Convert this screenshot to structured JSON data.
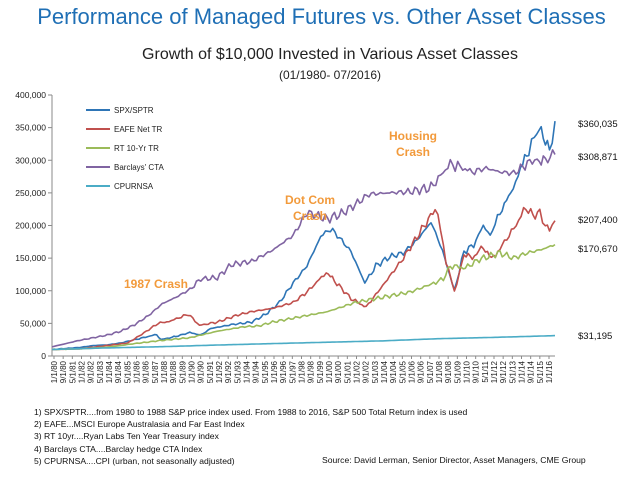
{
  "title": "Performance of Managed Futures vs. Other Asset Classes",
  "subtitle": "Growth of $10,000 Invested in Various Asset Classes",
  "period": "(01/1980- 07/2016)",
  "colors": {
    "title": "#1F6FB5",
    "annotation": "#F29A3B",
    "spx": "#2E75B6",
    "eafe": "#C0504D",
    "rt": "#9BBB59",
    "cta": "#8064A2",
    "cpi": "#4BACC6"
  },
  "chart_data": {
    "type": "line",
    "title": "Growth of $10,000 Invested in Various Asset Classes",
    "xlabel": "",
    "ylabel": "",
    "ylim": [
      0,
      400000
    ],
    "yticks": [
      0,
      50000,
      100000,
      150000,
      200000,
      250000,
      300000,
      350000,
      400000
    ],
    "ytick_labels": [
      "0",
      "50,000",
      "100,000",
      "150,000",
      "200,000",
      "250,000",
      "300,000",
      "350,000",
      "400,000"
    ],
    "xlim": [
      1980.0,
      2016.5
    ],
    "xtick_labels": [
      "1/1/80",
      "9/1/80",
      "5/1/81",
      "1/1/82",
      "9/1/82",
      "5/1/83",
      "1/1/84",
      "9/1/84",
      "5/1/85",
      "1/1/86",
      "9/1/86",
      "5/1/87",
      "1/1/88",
      "9/1/88",
      "5/1/89",
      "1/1/90",
      "9/1/90",
      "5/1/91",
      "1/1/92",
      "9/1/92",
      "5/1/93",
      "1/1/94",
      "9/1/94",
      "5/1/95",
      "1/1/96",
      "9/1/96",
      "5/1/97",
      "1/1/98",
      "9/1/98",
      "5/1/99",
      "1/1/00",
      "9/1/00",
      "5/1/01",
      "1/1/02",
      "9/1/02",
      "5/1/03",
      "1/1/04",
      "9/1/04",
      "5/1/05",
      "1/1/06",
      "9/1/06",
      "5/1/07",
      "1/1/08",
      "9/1/08",
      "5/1/09",
      "1/1/10",
      "9/1/10",
      "5/1/11",
      "1/1/12",
      "9/1/12",
      "5/1/13",
      "1/1/14",
      "9/1/14",
      "5/1/15",
      "1/1/16"
    ],
    "grid": false,
    "legend_position": "top-left",
    "series": [
      {
        "name": "SPX/SPTR",
        "color": "#2E75B6",
        "x": [
          1980.0,
          1981.0,
          1982.0,
          1983.0,
          1984.0,
          1985.0,
          1986.0,
          1987.6,
          1987.9,
          1989.0,
          1990.0,
          1990.8,
          1991.5,
          1993.0,
          1994.5,
          1995.5,
          1996.5,
          1997.5,
          1998.5,
          1999.5,
          2000.2,
          2000.7,
          2001.7,
          2002.7,
          2003.5,
          2004.5,
          2005.5,
          2006.5,
          2007.5,
          2008.0,
          2008.5,
          2009.2,
          2009.9,
          2010.6,
          2011.3,
          2011.8,
          2012.5,
          2013.3,
          2014.0,
          2014.6,
          2015.0,
          2015.5,
          2015.8,
          2016.1,
          2016.5
        ],
        "y": [
          10000,
          11500,
          13000,
          16000,
          17000,
          20000,
          25000,
          33000,
          25000,
          30000,
          36000,
          32000,
          42000,
          48000,
          52000,
          64000,
          82000,
          112000,
          138000,
          183000,
          195000,
          185000,
          160000,
          112000,
          138000,
          152000,
          158000,
          178000,
          205000,
          180000,
          150000,
          100000,
          160000,
          170000,
          200000,
          185000,
          220000,
          250000,
          285000,
          315000,
          335000,
          350000,
          330000,
          315000,
          360035
        ]
      },
      {
        "name": "EAFE Net TR",
        "color": "#C0504D",
        "x": [
          1980.0,
          1982.0,
          1984.0,
          1985.5,
          1986.5,
          1987.7,
          1988.5,
          1989.9,
          1990.7,
          1992.0,
          1993.5,
          1994.5,
          1996.0,
          1997.5,
          1998.5,
          1999.9,
          2000.5,
          2001.7,
          2002.8,
          2004.0,
          2005.5,
          2006.5,
          2007.8,
          2008.2,
          2008.6,
          2009.2,
          2009.9,
          2010.5,
          2011.3,
          2011.9,
          2012.5,
          2013.5,
          2014.4,
          2014.9,
          2015.4,
          2015.8,
          2016.1,
          2016.5
        ],
        "y": [
          10000,
          11000,
          16000,
          20000,
          33000,
          50000,
          53000,
          64000,
          47000,
          52000,
          63000,
          68000,
          73000,
          82000,
          98000,
          128000,
          115000,
          88000,
          75000,
          108000,
          150000,
          183000,
          225000,
          195000,
          145000,
          98000,
          155000,
          150000,
          168000,
          148000,
          165000,
          195000,
          228000,
          215000,
          220000,
          200000,
          195000,
          207400
        ]
      },
      {
        "name": "RT 10-Yr TR",
        "color": "#9BBB59",
        "x": [
          1980.0,
          1982.0,
          1984.0,
          1986.0,
          1988.0,
          1990.0,
          1992.0,
          1994.0,
          1995.0,
          1996.0,
          1998.0,
          2000.0,
          2002.0,
          2004.0,
          2006.0,
          2007.5,
          2008.4,
          2008.9,
          2010.0,
          2011.0,
          2012.5,
          2013.5,
          2014.5,
          2015.5,
          2016.5
        ],
        "y": [
          10000,
          11000,
          13500,
          19000,
          24000,
          28000,
          38000,
          45000,
          46000,
          52000,
          60000,
          68000,
          82000,
          90000,
          98000,
          110000,
          118000,
          138000,
          135000,
          148000,
          158000,
          150000,
          158000,
          163000,
          170670
        ]
      },
      {
        "name": "Barclays' CTA",
        "color": "#8064A2",
        "x": [
          1980.0,
          1981.0,
          1982.0,
          1983.0,
          1984.0,
          1985.0,
          1986.0,
          1987.0,
          1988.0,
          1989.0,
          1990.0,
          1990.8,
          1992.0,
          1993.0,
          1994.5,
          1996.0,
          1997.5,
          1998.5,
          2000.0,
          2001.0,
          2002.0,
          2003.0,
          2004.5,
          2006.0,
          2007.5,
          2008.9,
          2009.8,
          2010.5,
          2011.5,
          2012.5,
          2013.5,
          2014.5,
          2015.2,
          2015.8,
          2016.5
        ],
        "y": [
          14000,
          19000,
          24000,
          28000,
          32000,
          38000,
          48000,
          62000,
          80000,
          90000,
          102000,
          118000,
          120000,
          140000,
          145000,
          162000,
          185000,
          220000,
          210000,
          218000,
          232000,
          248000,
          250000,
          252000,
          258000,
          295000,
          288000,
          282000,
          288000,
          282000,
          280000,
          295000,
          302000,
          300000,
          308871
        ]
      },
      {
        "name": "CPURNSA",
        "color": "#4BACC6",
        "x": [
          1980.0,
          1984.0,
          1988.0,
          1992.0,
          1996.0,
          2000.0,
          2004.0,
          2008.0,
          2012.0,
          2016.5
        ],
        "y": [
          10000,
          12400,
          14300,
          16800,
          19000,
          21100,
          23200,
          26500,
          28500,
          31195
        ]
      }
    ],
    "end_labels": [
      "$360,035",
      "$308,871",
      "$207,400",
      "$170,670",
      "$31,195"
    ],
    "annotations": [
      "1987 Crash",
      "Dot Com Crash",
      "Housing Crash"
    ]
  },
  "footnotes": [
    "1) SPX/SPTR....from 1980 to 1988 S&P price index used.  From 1988 to 2016, S&P 500 Total Return index is used",
    "2) EAFE...MSCI Europe Australasia and Far East Index",
    "3) RT 10yr....Ryan Labs Ten Year Treasury index",
    "4) Barclays CTA....Barclay hedge CTA Index",
    "5) CPURNSA....CPI (urban, not seasonally adjusted)"
  ],
  "source": "Source:  David Lerman, Senior Director, Asset Managers, CME Group"
}
